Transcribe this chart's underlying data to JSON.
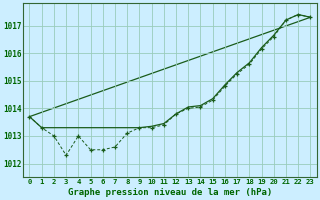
{
  "xlabel": "Graphe pression niveau de la mer (hPa)",
  "bg_color": "#cceeff",
  "grid_color": "#99ccbb",
  "text_color": "#006600",
  "line_color": "#1a5c1a",
  "ylim": [
    1011.5,
    1017.8
  ],
  "xlim": [
    -0.5,
    23.5
  ],
  "yticks": [
    1012,
    1013,
    1014,
    1015,
    1016,
    1017
  ],
  "xtick_labels": [
    "0",
    "1",
    "2",
    "3",
    "4",
    "5",
    "6",
    "7",
    "8",
    "9",
    "10",
    "11",
    "12",
    "13",
    "14",
    "15",
    "16",
    "17",
    "18",
    "19",
    "20",
    "21",
    "22",
    "23"
  ],
  "series1": [
    1013.7,
    1013.3,
    1013.0,
    1012.3,
    1013.0,
    1012.5,
    1012.5,
    1012.6,
    1013.1,
    1013.3,
    1013.3,
    1013.4,
    1013.8,
    1014.0,
    1014.05,
    1014.3,
    1014.8,
    1015.25,
    1015.6,
    1016.15,
    1016.6,
    1017.2,
    1017.4,
    1017.3
  ],
  "series2": [
    1013.7,
    1013.3,
    1013.3,
    1013.3,
    1013.3,
    1013.3,
    1013.3,
    1013.3,
    1013.3,
    1013.3,
    1013.35,
    1013.45,
    1013.8,
    1014.05,
    1014.1,
    1014.35,
    1014.85,
    1015.3,
    1015.65,
    1016.2,
    1016.65,
    1017.2,
    1017.4,
    1017.3
  ],
  "series3_x": [
    0,
    23
  ],
  "series3_y": [
    1013.7,
    1017.3
  ]
}
